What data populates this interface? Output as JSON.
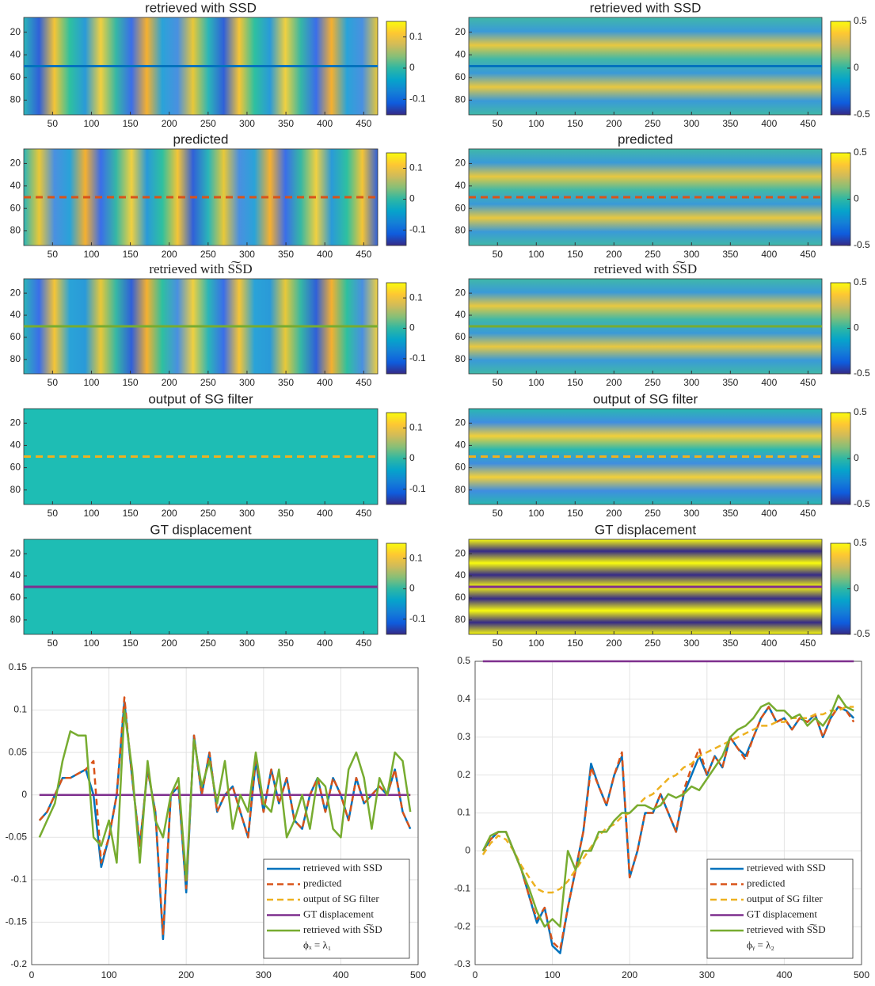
{
  "chart_data": [
    {
      "type": "heatmap",
      "title": "retrieved with SSD",
      "xlim": [
        13,
        468
      ],
      "xticks": [
        50,
        100,
        150,
        200,
        250,
        300,
        350,
        400,
        450
      ],
      "ylim": [
        7,
        93
      ],
      "yticks": [
        20,
        40,
        60,
        80
      ],
      "clim": [
        -0.15,
        0.15
      ],
      "cticks": [
        0.1,
        0,
        -0.1
      ],
      "marker": {
        "row": 50,
        "color": "#0072BD",
        "style": "solid"
      }
    },
    {
      "type": "heatmap",
      "title": "predicted",
      "xlim": [
        13,
        468
      ],
      "xticks": [
        50,
        100,
        150,
        200,
        250,
        300,
        350,
        400,
        450
      ],
      "ylim": [
        7,
        93
      ],
      "yticks": [
        20,
        40,
        60,
        80
      ],
      "clim": [
        -0.15,
        0.15
      ],
      "cticks": [
        0.1,
        0,
        -0.1
      ],
      "marker": {
        "row": 50,
        "color": "#D95319",
        "style": "dashed"
      }
    },
    {
      "type": "heatmap",
      "title": "retrieved with S͠SD",
      "xlim": [
        13,
        468
      ],
      "xticks": [
        50,
        100,
        150,
        200,
        250,
        300,
        350,
        400,
        450
      ],
      "ylim": [
        7,
        93
      ],
      "yticks": [
        20,
        40,
        60,
        80
      ],
      "clim": [
        -0.15,
        0.15
      ],
      "cticks": [
        0.1,
        0,
        -0.1
      ],
      "marker": {
        "row": 50,
        "color": "#77AC30",
        "style": "solid"
      }
    },
    {
      "type": "heatmap",
      "title": "output of SG filter",
      "xlim": [
        13,
        468
      ],
      "xticks": [
        50,
        100,
        150,
        200,
        250,
        300,
        350,
        400,
        450
      ],
      "ylim": [
        7,
        93
      ],
      "yticks": [
        20,
        40,
        60,
        80
      ],
      "clim": [
        -0.15,
        0.15
      ],
      "cticks": [
        0.1,
        0,
        -0.1
      ],
      "marker": {
        "row": 50,
        "color": "#EDB120",
        "style": "dashed"
      }
    },
    {
      "type": "heatmap",
      "title": "GT displacement",
      "xlim": [
        13,
        468
      ],
      "xticks": [
        50,
        100,
        150,
        200,
        250,
        300,
        350,
        400,
        450
      ],
      "ylim": [
        7,
        93
      ],
      "yticks": [
        20,
        40,
        60,
        80
      ],
      "clim": [
        -0.15,
        0.15
      ],
      "cticks": [
        0.1,
        0,
        -0.1
      ],
      "marker": {
        "row": 50,
        "color": "#7E2F8E",
        "style": "solid"
      }
    },
    {
      "type": "heatmap",
      "title": "retrieved with SSD",
      "xlim": [
        13,
        468
      ],
      "xticks": [
        50,
        100,
        150,
        200,
        250,
        300,
        350,
        400,
        450
      ],
      "ylim": [
        7,
        93
      ],
      "yticks": [
        20,
        40,
        60,
        80
      ],
      "clim": [
        -0.5,
        0.5
      ],
      "cticks": [
        0.5,
        0,
        -0.5
      ],
      "marker": {
        "row": 50,
        "color": "#0072BD",
        "style": "solid"
      }
    },
    {
      "type": "heatmap",
      "title": "predicted",
      "xlim": [
        13,
        468
      ],
      "xticks": [
        50,
        100,
        150,
        200,
        250,
        300,
        350,
        400,
        450
      ],
      "ylim": [
        7,
        93
      ],
      "yticks": [
        20,
        40,
        60,
        80
      ],
      "clim": [
        -0.5,
        0.5
      ],
      "cticks": [
        0.5,
        0,
        -0.5
      ],
      "marker": {
        "row": 50,
        "color": "#D95319",
        "style": "dashed"
      }
    },
    {
      "type": "heatmap",
      "title": "retrieved with S͠SD",
      "xlim": [
        13,
        468
      ],
      "xticks": [
        50,
        100,
        150,
        200,
        250,
        300,
        350,
        400,
        450
      ],
      "ylim": [
        7,
        93
      ],
      "yticks": [
        20,
        40,
        60,
        80
      ],
      "clim": [
        -0.5,
        0.5
      ],
      "cticks": [
        0.5,
        0,
        -0.5
      ],
      "marker": {
        "row": 50,
        "color": "#77AC30",
        "style": "solid"
      }
    },
    {
      "type": "heatmap",
      "title": "output of SG filter",
      "xlim": [
        13,
        468
      ],
      "xticks": [
        50,
        100,
        150,
        200,
        250,
        300,
        350,
        400,
        450
      ],
      "ylim": [
        7,
        93
      ],
      "yticks": [
        20,
        40,
        60,
        80
      ],
      "clim": [
        -0.5,
        0.5
      ],
      "cticks": [
        0.5,
        0,
        -0.5
      ],
      "marker": {
        "row": 50,
        "color": "#EDB120",
        "style": "dashed"
      }
    },
    {
      "type": "heatmap",
      "title": "GT displacement",
      "xlim": [
        13,
        468
      ],
      "xticks": [
        50,
        100,
        150,
        200,
        250,
        300,
        350,
        400,
        450
      ],
      "ylim": [
        7,
        93
      ],
      "yticks": [
        20,
        40,
        60,
        80
      ],
      "clim": [
        -0.5,
        0.5
      ],
      "cticks": [
        0.5,
        0,
        -0.5
      ],
      "marker": {
        "row": 50,
        "color": "#7E2F8E",
        "style": "solid"
      }
    },
    {
      "type": "line",
      "xlim": [
        0,
        500
      ],
      "xticks": [
        0,
        100,
        200,
        300,
        400,
        500
      ],
      "ylim": [
        -0.2,
        0.15
      ],
      "yticks": [
        -0.2,
        -0.15,
        -0.1,
        -0.05,
        0,
        0.05,
        0.1,
        0.15
      ],
      "grid": true,
      "legend": "southeast",
      "annotation": "ϕₓ = λ₁",
      "x": [
        10,
        20,
        30,
        40,
        50,
        60,
        70,
        80,
        90,
        100,
        110,
        120,
        130,
        140,
        150,
        160,
        170,
        180,
        190,
        200,
        210,
        220,
        230,
        240,
        250,
        260,
        270,
        280,
        290,
        300,
        310,
        320,
        330,
        340,
        350,
        360,
        370,
        380,
        390,
        400,
        410,
        420,
        430,
        440,
        450,
        460,
        470,
        480,
        490
      ],
      "series": [
        {
          "name": "retrieved with SSD",
          "color": "#0072BD",
          "style": "solid",
          "values": [
            -0.03,
            -0.02,
            0.0,
            0.02,
            0.02,
            0.025,
            0.03,
            0.0,
            -0.085,
            -0.05,
            0.0,
            0.11,
            0.02,
            -0.06,
            0.03,
            -0.02,
            -0.17,
            0.0,
            0.01,
            -0.115,
            0.07,
            0.0,
            0.05,
            -0.02,
            0.0,
            0.01,
            -0.02,
            -0.05,
            0.04,
            -0.02,
            0.03,
            -0.01,
            0.02,
            -0.03,
            -0.04,
            0.0,
            0.02,
            -0.02,
            0.02,
            0.0,
            -0.03,
            0.02,
            -0.01,
            0.0,
            0.01,
            0.0,
            0.03,
            -0.02,
            -0.04
          ]
        },
        {
          "name": "predicted",
          "color": "#D95319",
          "style": "dashed",
          "values": [
            -0.03,
            -0.02,
            0.0,
            0.02,
            0.02,
            0.025,
            0.03,
            0.04,
            -0.08,
            -0.05,
            0.0,
            0.115,
            0.02,
            -0.06,
            0.03,
            -0.02,
            -0.165,
            0.0,
            0.01,
            -0.11,
            0.07,
            0.0,
            0.05,
            -0.02,
            0.0,
            0.01,
            -0.02,
            -0.05,
            0.045,
            -0.02,
            0.03,
            -0.01,
            0.02,
            -0.03,
            -0.04,
            0.0,
            0.02,
            -0.02,
            0.02,
            0.0,
            -0.03,
            0.02,
            -0.01,
            0.0,
            0.01,
            0.0,
            0.03,
            -0.02,
            -0.04
          ]
        },
        {
          "name": "output of SG filter",
          "color": "#EDB120",
          "style": "dashed",
          "values": [
            0,
            0,
            0,
            0,
            0,
            0,
            0,
            0,
            0,
            0,
            0,
            0,
            0,
            0,
            0,
            0,
            0,
            0,
            0,
            0,
            0,
            0,
            0,
            0,
            0,
            0,
            0,
            0,
            0,
            0,
            0,
            0,
            0,
            0,
            0,
            0,
            0,
            0,
            0,
            0,
            0,
            0,
            0,
            0,
            0,
            0,
            0,
            0,
            0
          ]
        },
        {
          "name": "GT displacement",
          "color": "#7E2F8E",
          "style": "solid",
          "values": [
            0,
            0,
            0,
            0,
            0,
            0,
            0,
            0,
            0,
            0,
            0,
            0,
            0,
            0,
            0,
            0,
            0,
            0,
            0,
            0,
            0,
            0,
            0,
            0,
            0,
            0,
            0,
            0,
            0,
            0,
            0,
            0,
            0,
            0,
            0,
            0,
            0,
            0,
            0,
            0,
            0,
            0,
            0,
            0,
            0,
            0,
            0,
            0,
            0
          ]
        },
        {
          "name": "retrieved with S͠SD",
          "color": "#77AC30",
          "style": "solid",
          "values": [
            -0.05,
            -0.03,
            -0.01,
            0.04,
            0.075,
            0.07,
            0.07,
            -0.05,
            -0.06,
            -0.03,
            -0.08,
            0.1,
            0.03,
            -0.08,
            0.04,
            -0.03,
            -0.05,
            0.0,
            0.02,
            -0.1,
            0.065,
            0.01,
            0.04,
            -0.01,
            0.04,
            -0.04,
            0.0,
            -0.02,
            0.05,
            -0.01,
            -0.02,
            0.03,
            -0.05,
            -0.03,
            0.0,
            -0.04,
            0.02,
            0.01,
            -0.04,
            -0.05,
            0.03,
            0.05,
            0.02,
            -0.04,
            0.02,
            0.0,
            0.05,
            0.04,
            -0.02
          ]
        }
      ]
    },
    {
      "type": "line",
      "xlim": [
        0,
        500
      ],
      "xticks": [
        0,
        100,
        200,
        300,
        400,
        500
      ],
      "ylim": [
        -0.3,
        0.5
      ],
      "yticks": [
        -0.3,
        -0.2,
        -0.1,
        0,
        0.1,
        0.2,
        0.3,
        0.4,
        0.5
      ],
      "grid": true,
      "legend": "southeast",
      "annotation": "ϕᵧ = λ₂",
      "x": [
        10,
        20,
        30,
        40,
        50,
        60,
        70,
        80,
        90,
        100,
        110,
        120,
        130,
        140,
        150,
        160,
        170,
        180,
        190,
        200,
        210,
        220,
        230,
        240,
        250,
        260,
        270,
        280,
        290,
        300,
        310,
        320,
        330,
        340,
        350,
        360,
        370,
        380,
        390,
        400,
        410,
        420,
        430,
        440,
        450,
        460,
        470,
        480,
        490
      ],
      "series": [
        {
          "name": "retrieved with SSD",
          "color": "#0072BD",
          "style": "solid",
          "values": [
            0.0,
            0.03,
            0.05,
            0.05,
            0.0,
            -0.05,
            -0.12,
            -0.19,
            -0.15,
            -0.25,
            -0.27,
            -0.15,
            -0.05,
            0.05,
            0.23,
            0.17,
            0.12,
            0.2,
            0.25,
            -0.07,
            0.0,
            0.1,
            0.1,
            0.15,
            0.1,
            0.05,
            0.15,
            0.2,
            0.25,
            0.2,
            0.25,
            0.22,
            0.3,
            0.27,
            0.25,
            0.3,
            0.35,
            0.38,
            0.34,
            0.35,
            0.32,
            0.35,
            0.34,
            0.36,
            0.3,
            0.35,
            0.38,
            0.37,
            0.35
          ]
        },
        {
          "name": "predicted",
          "color": "#D95319",
          "style": "dashed",
          "values": [
            0.0,
            0.03,
            0.05,
            0.05,
            0.0,
            -0.05,
            -0.12,
            -0.18,
            -0.15,
            -0.24,
            -0.26,
            -0.15,
            -0.05,
            0.05,
            0.22,
            0.17,
            0.12,
            0.2,
            0.26,
            -0.07,
            0.0,
            0.1,
            0.1,
            0.15,
            0.1,
            0.05,
            0.16,
            0.22,
            0.27,
            0.2,
            0.25,
            0.22,
            0.3,
            0.27,
            0.24,
            0.3,
            0.35,
            0.38,
            0.34,
            0.35,
            0.32,
            0.35,
            0.34,
            0.36,
            0.3,
            0.35,
            0.38,
            0.37,
            0.34
          ]
        },
        {
          "name": "output of SG filter",
          "color": "#EDB120",
          "style": "dashed",
          "values": [
            -0.01,
            0.02,
            0.04,
            0.03,
            0.0,
            -0.04,
            -0.07,
            -0.1,
            -0.11,
            -0.11,
            -0.1,
            -0.08,
            -0.05,
            -0.02,
            0.01,
            0.04,
            0.06,
            0.07,
            0.09,
            0.1,
            0.12,
            0.14,
            0.15,
            0.17,
            0.19,
            0.2,
            0.22,
            0.23,
            0.25,
            0.26,
            0.27,
            0.28,
            0.29,
            0.3,
            0.31,
            0.32,
            0.33,
            0.33,
            0.34,
            0.34,
            0.35,
            0.35,
            0.35,
            0.36,
            0.36,
            0.37,
            0.37,
            0.38,
            0.38
          ]
        },
        {
          "name": "GT displacement",
          "color": "#7E2F8E",
          "style": "solid",
          "values": [
            0.5,
            0.5,
            0.5,
            0.5,
            0.5,
            0.5,
            0.5,
            0.5,
            0.5,
            0.5,
            0.5,
            0.5,
            0.5,
            0.5,
            0.5,
            0.5,
            0.5,
            0.5,
            0.5,
            0.5,
            0.5,
            0.5,
            0.5,
            0.5,
            0.5,
            0.5,
            0.5,
            0.5,
            0.5,
            0.5,
            0.5,
            0.5,
            0.5,
            0.5,
            0.5,
            0.5,
            0.5,
            0.5,
            0.5,
            0.5,
            0.5,
            0.5,
            0.5,
            0.5,
            0.5,
            0.5,
            0.5,
            0.5,
            0.5
          ]
        },
        {
          "name": "retrieved with S͠SD",
          "color": "#77AC30",
          "style": "solid",
          "values": [
            0.0,
            0.04,
            0.05,
            0.05,
            0.0,
            -0.05,
            -0.1,
            -0.16,
            -0.2,
            -0.18,
            -0.2,
            0.0,
            -0.05,
            0.0,
            0.0,
            0.05,
            0.05,
            0.08,
            0.1,
            0.1,
            0.12,
            0.12,
            0.11,
            0.12,
            0.15,
            0.14,
            0.15,
            0.17,
            0.16,
            0.19,
            0.22,
            0.25,
            0.3,
            0.32,
            0.33,
            0.35,
            0.38,
            0.39,
            0.37,
            0.37,
            0.35,
            0.36,
            0.33,
            0.35,
            0.33,
            0.36,
            0.41,
            0.38,
            0.37
          ]
        }
      ]
    }
  ]
}
